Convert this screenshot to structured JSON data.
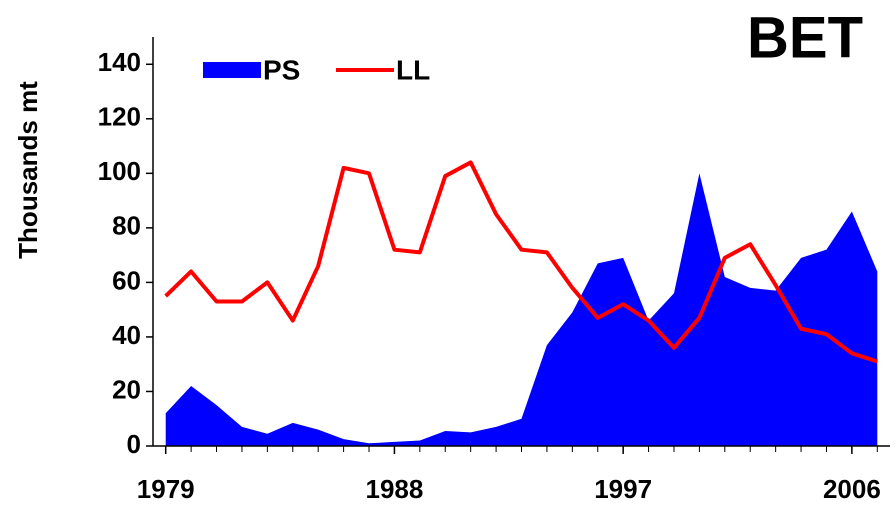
{
  "chart_data": {
    "type": "area_line",
    "title": "BET",
    "y_label": "Thousands mt",
    "x": [
      1979,
      1980,
      1981,
      1982,
      1983,
      1984,
      1985,
      1986,
      1987,
      1988,
      1989,
      1990,
      1991,
      1992,
      1993,
      1994,
      1995,
      1996,
      1997,
      1998,
      1999,
      2000,
      2001,
      2002,
      2003,
      2004,
      2005,
      2006,
      2007
    ],
    "series": [
      {
        "name": "PS",
        "color": "#0000ff",
        "kind": "area",
        "values": [
          12,
          22,
          15,
          7,
          4.5,
          8.5,
          6,
          2.5,
          1,
          1.5,
          2,
          5.5,
          5,
          7,
          10,
          37,
          49,
          67,
          69,
          46,
          56,
          100,
          62,
          58,
          57,
          69,
          72,
          86,
          64
        ]
      },
      {
        "name": "LL",
        "color": "#ff0000",
        "kind": "line",
        "values": [
          55,
          64,
          53,
          53,
          60,
          46,
          66,
          102,
          100,
          72,
          71,
          99,
          104,
          85,
          72,
          71,
          58,
          47,
          52,
          46,
          36,
          47,
          69,
          74,
          59,
          43,
          41,
          34,
          31
        ]
      }
    ],
    "xlim": [
      1978.5,
      2007.5
    ],
    "xticks": [
      1979,
      1988,
      1997,
      2006
    ],
    "ylim": [
      0,
      150
    ],
    "yticks": [
      0,
      20,
      40,
      60,
      80,
      100,
      120,
      140
    ]
  }
}
